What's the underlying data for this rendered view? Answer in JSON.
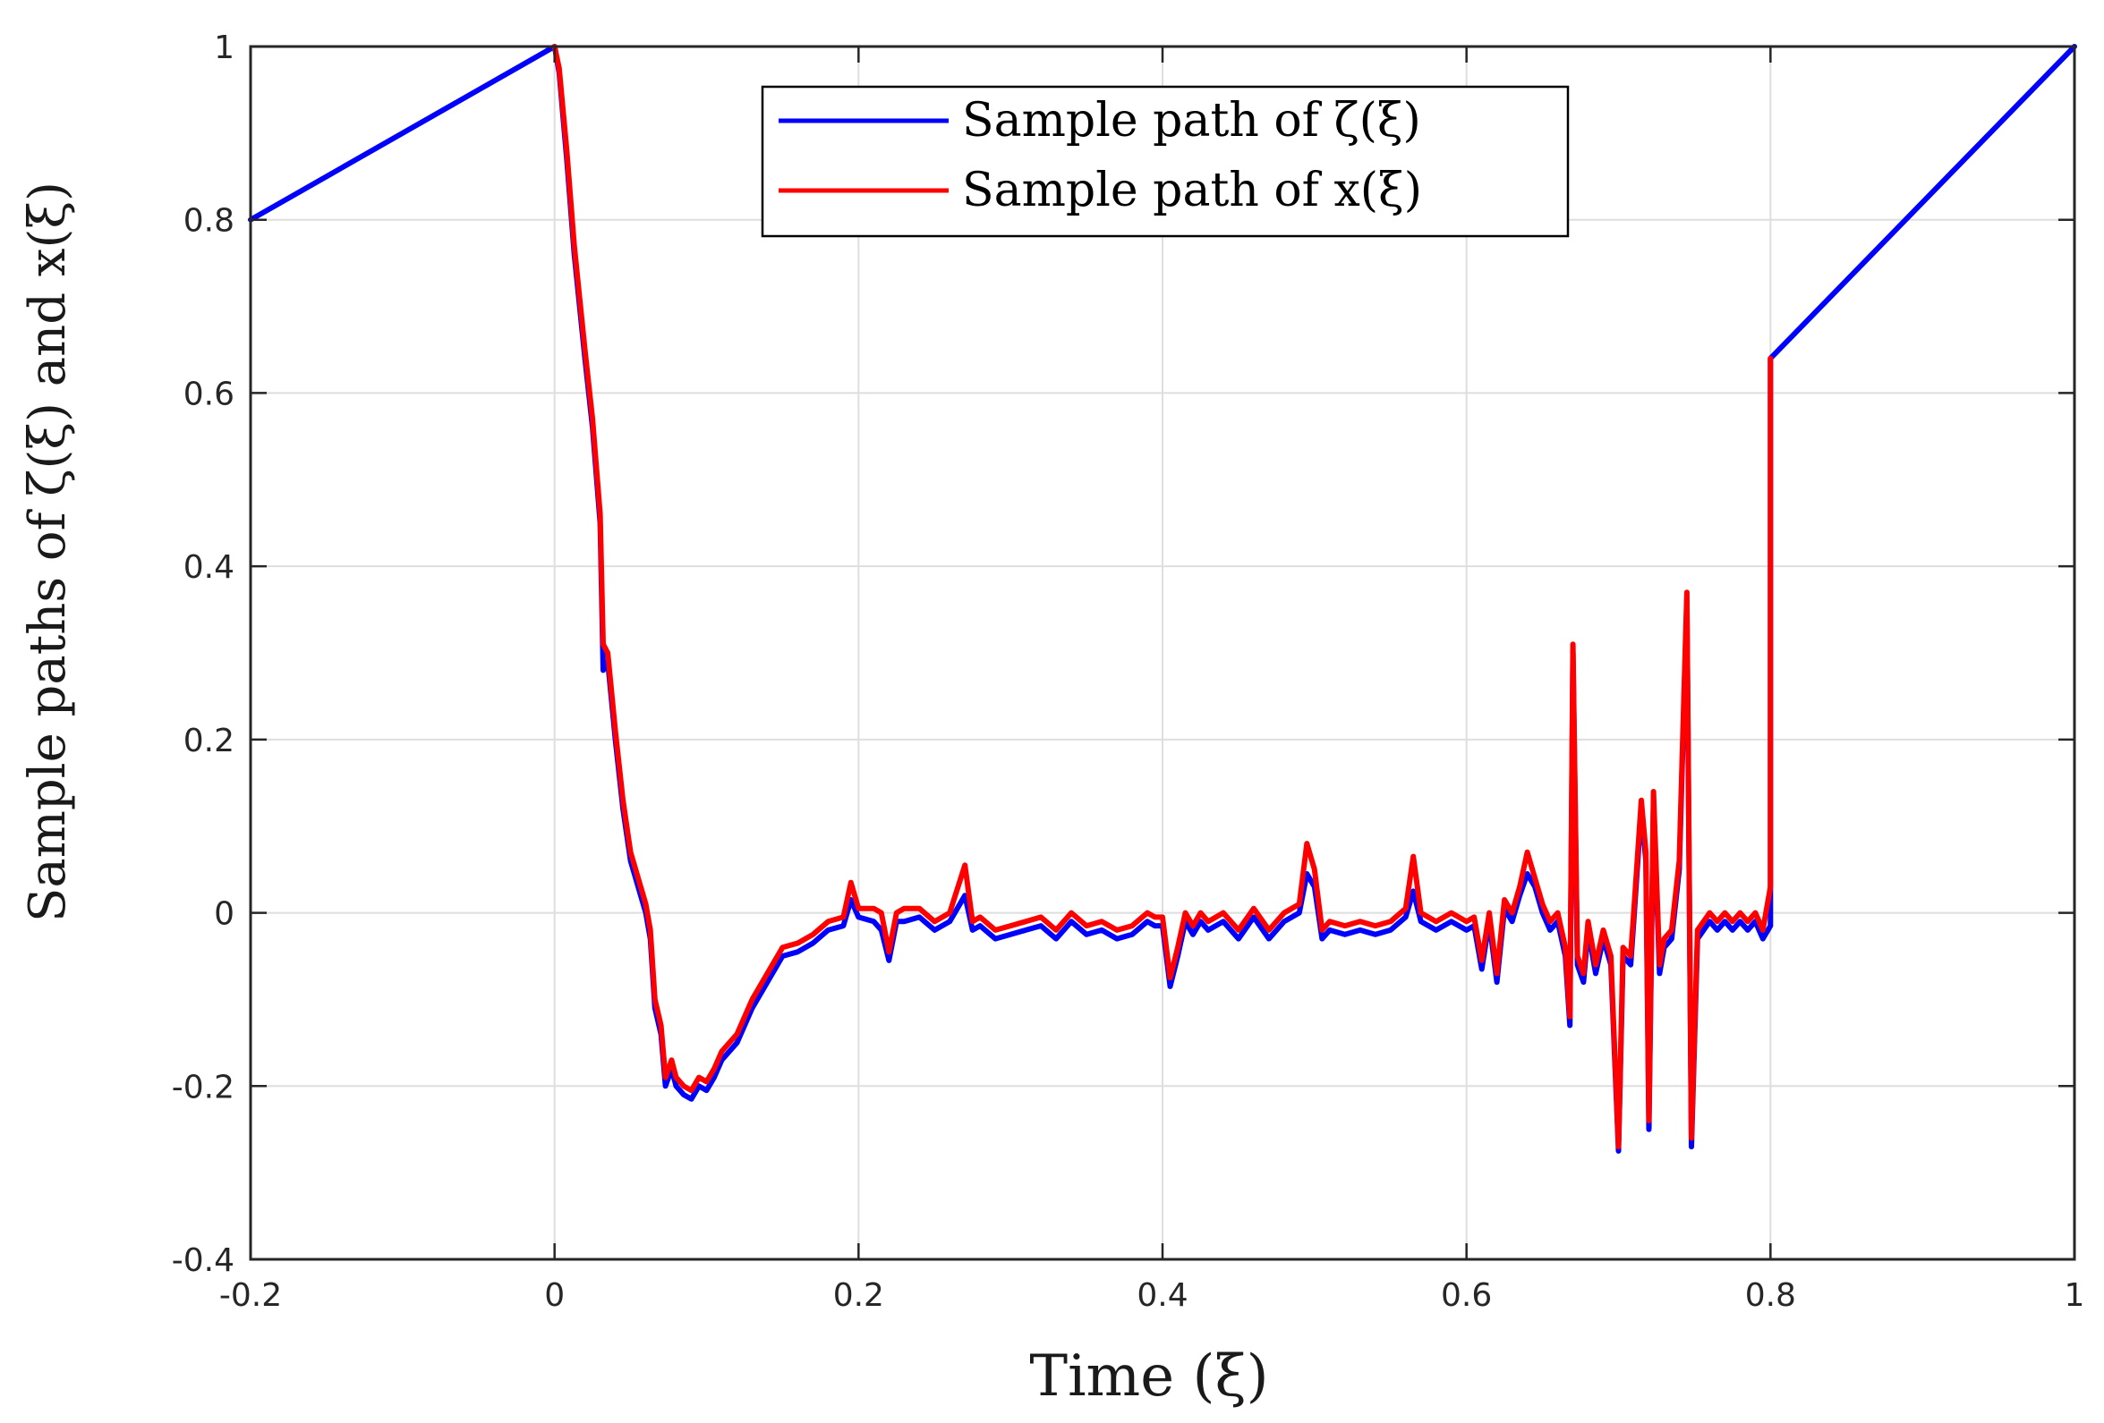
{
  "chart_data": {
    "type": "line",
    "xlabel": "Time (ξ)",
    "ylabel": "Sample paths of ζ(ξ) and x(ξ)",
    "xlim": [
      -0.2,
      1.0
    ],
    "ylim": [
      -0.4,
      1.0
    ],
    "xticks": [
      "-0.2",
      "0",
      "0.2",
      "0.4",
      "0.6",
      "0.8",
      "1"
    ],
    "yticks": [
      "-0.4",
      "-0.2",
      "0",
      "0.2",
      "0.4",
      "0.6",
      "0.8",
      "1"
    ],
    "grid": true,
    "legend_position": "top-center",
    "series": [
      {
        "name": "Sample path of ζ(ξ)",
        "color": "#0000ff",
        "points": [
          [
            -0.2,
            0.8
          ],
          [
            0.0,
            1.0
          ],
          [
            0.003,
            0.97
          ],
          [
            0.008,
            0.87
          ],
          [
            0.013,
            0.76
          ],
          [
            0.02,
            0.64
          ],
          [
            0.025,
            0.56
          ],
          [
            0.03,
            0.45
          ],
          [
            0.032,
            0.28
          ],
          [
            0.035,
            0.29
          ],
          [
            0.04,
            0.2
          ],
          [
            0.045,
            0.12
          ],
          [
            0.05,
            0.06
          ],
          [
            0.055,
            0.03
          ],
          [
            0.06,
            0.0
          ],
          [
            0.063,
            -0.03
          ],
          [
            0.066,
            -0.11
          ],
          [
            0.07,
            -0.14
          ],
          [
            0.073,
            -0.2
          ],
          [
            0.077,
            -0.18
          ],
          [
            0.08,
            -0.2
          ],
          [
            0.085,
            -0.21
          ],
          [
            0.09,
            -0.215
          ],
          [
            0.095,
            -0.2
          ],
          [
            0.1,
            -0.205
          ],
          [
            0.105,
            -0.19
          ],
          [
            0.11,
            -0.17
          ],
          [
            0.12,
            -0.15
          ],
          [
            0.13,
            -0.11
          ],
          [
            0.14,
            -0.08
          ],
          [
            0.15,
            -0.05
          ],
          [
            0.16,
            -0.045
          ],
          [
            0.17,
            -0.035
          ],
          [
            0.18,
            -0.02
          ],
          [
            0.19,
            -0.015
          ],
          [
            0.195,
            0.015
          ],
          [
            0.2,
            -0.005
          ],
          [
            0.21,
            -0.01
          ],
          [
            0.215,
            -0.02
          ],
          [
            0.22,
            -0.055
          ],
          [
            0.225,
            -0.01
          ],
          [
            0.23,
            -0.01
          ],
          [
            0.24,
            -0.005
          ],
          [
            0.25,
            -0.02
          ],
          [
            0.26,
            -0.01
          ],
          [
            0.27,
            0.02
          ],
          [
            0.275,
            -0.02
          ],
          [
            0.28,
            -0.015
          ],
          [
            0.29,
            -0.03
          ],
          [
            0.3,
            -0.025
          ],
          [
            0.31,
            -0.02
          ],
          [
            0.32,
            -0.015
          ],
          [
            0.33,
            -0.03
          ],
          [
            0.34,
            -0.01
          ],
          [
            0.35,
            -0.025
          ],
          [
            0.36,
            -0.02
          ],
          [
            0.37,
            -0.03
          ],
          [
            0.38,
            -0.025
          ],
          [
            0.39,
            -0.01
          ],
          [
            0.395,
            -0.015
          ],
          [
            0.4,
            -0.015
          ],
          [
            0.405,
            -0.085
          ],
          [
            0.41,
            -0.05
          ],
          [
            0.415,
            -0.01
          ],
          [
            0.42,
            -0.025
          ],
          [
            0.425,
            -0.01
          ],
          [
            0.43,
            -0.02
          ],
          [
            0.44,
            -0.01
          ],
          [
            0.45,
            -0.03
          ],
          [
            0.46,
            -0.005
          ],
          [
            0.47,
            -0.03
          ],
          [
            0.48,
            -0.01
          ],
          [
            0.49,
            0.0
          ],
          [
            0.495,
            0.045
          ],
          [
            0.5,
            0.03
          ],
          [
            0.505,
            -0.03
          ],
          [
            0.51,
            -0.02
          ],
          [
            0.52,
            -0.025
          ],
          [
            0.53,
            -0.02
          ],
          [
            0.54,
            -0.025
          ],
          [
            0.55,
            -0.02
          ],
          [
            0.56,
            -0.005
          ],
          [
            0.565,
            0.025
          ],
          [
            0.57,
            -0.01
          ],
          [
            0.58,
            -0.02
          ],
          [
            0.59,
            -0.01
          ],
          [
            0.6,
            -0.02
          ],
          [
            0.605,
            -0.015
          ],
          [
            0.61,
            -0.065
          ],
          [
            0.615,
            -0.01
          ],
          [
            0.62,
            -0.08
          ],
          [
            0.625,
            0.005
          ],
          [
            0.63,
            -0.01
          ],
          [
            0.635,
            0.02
          ],
          [
            0.64,
            0.045
          ],
          [
            0.645,
            0.03
          ],
          [
            0.65,
            0.0
          ],
          [
            0.655,
            -0.02
          ],
          [
            0.66,
            -0.01
          ],
          [
            0.665,
            -0.05
          ],
          [
            0.668,
            -0.13
          ],
          [
            0.67,
            0.3
          ],
          [
            0.673,
            -0.06
          ],
          [
            0.677,
            -0.08
          ],
          [
            0.68,
            -0.02
          ],
          [
            0.685,
            -0.07
          ],
          [
            0.69,
            -0.03
          ],
          [
            0.695,
            -0.06
          ],
          [
            0.7,
            -0.275
          ],
          [
            0.703,
            -0.05
          ],
          [
            0.708,
            -0.06
          ],
          [
            0.71,
            -0.01
          ],
          [
            0.715,
            0.12
          ],
          [
            0.718,
            0.06
          ],
          [
            0.72,
            -0.25
          ],
          [
            0.723,
            0.13
          ],
          [
            0.727,
            -0.07
          ],
          [
            0.73,
            -0.04
          ],
          [
            0.735,
            -0.03
          ],
          [
            0.74,
            0.05
          ],
          [
            0.745,
            0.36
          ],
          [
            0.748,
            -0.27
          ],
          [
            0.752,
            -0.03
          ],
          [
            0.76,
            -0.01
          ],
          [
            0.765,
            -0.02
          ],
          [
            0.77,
            -0.01
          ],
          [
            0.775,
            -0.02
          ],
          [
            0.78,
            -0.01
          ],
          [
            0.785,
            -0.02
          ],
          [
            0.79,
            -0.01
          ],
          [
            0.795,
            -0.03
          ],
          [
            0.8,
            -0.015
          ],
          [
            0.8,
            0.64
          ],
          [
            1.0,
            1.0
          ]
        ]
      },
      {
        "name": "Sample path of x(ξ)",
        "color": "#ff0000",
        "points": [
          [
            0.0,
            1.0
          ],
          [
            0.003,
            0.975
          ],
          [
            0.008,
            0.88
          ],
          [
            0.013,
            0.77
          ],
          [
            0.02,
            0.65
          ],
          [
            0.025,
            0.57
          ],
          [
            0.03,
            0.46
          ],
          [
            0.032,
            0.31
          ],
          [
            0.035,
            0.3
          ],
          [
            0.04,
            0.21
          ],
          [
            0.045,
            0.13
          ],
          [
            0.05,
            0.07
          ],
          [
            0.055,
            0.04
          ],
          [
            0.06,
            0.01
          ],
          [
            0.063,
            -0.02
          ],
          [
            0.066,
            -0.1
          ],
          [
            0.07,
            -0.13
          ],
          [
            0.073,
            -0.19
          ],
          [
            0.077,
            -0.17
          ],
          [
            0.08,
            -0.19
          ],
          [
            0.085,
            -0.2
          ],
          [
            0.09,
            -0.205
          ],
          [
            0.095,
            -0.19
          ],
          [
            0.1,
            -0.195
          ],
          [
            0.105,
            -0.18
          ],
          [
            0.11,
            -0.16
          ],
          [
            0.12,
            -0.14
          ],
          [
            0.13,
            -0.1
          ],
          [
            0.14,
            -0.07
          ],
          [
            0.15,
            -0.04
          ],
          [
            0.16,
            -0.035
          ],
          [
            0.17,
            -0.025
          ],
          [
            0.18,
            -0.01
          ],
          [
            0.19,
            -0.005
          ],
          [
            0.195,
            0.035
          ],
          [
            0.2,
            0.005
          ],
          [
            0.21,
            0.005
          ],
          [
            0.215,
            0.0
          ],
          [
            0.22,
            -0.045
          ],
          [
            0.225,
            0.0
          ],
          [
            0.23,
            0.005
          ],
          [
            0.24,
            0.005
          ],
          [
            0.25,
            -0.01
          ],
          [
            0.26,
            0.0
          ],
          [
            0.27,
            0.055
          ],
          [
            0.275,
            -0.01
          ],
          [
            0.28,
            -0.005
          ],
          [
            0.29,
            -0.02
          ],
          [
            0.3,
            -0.015
          ],
          [
            0.31,
            -0.01
          ],
          [
            0.32,
            -0.005
          ],
          [
            0.33,
            -0.02
          ],
          [
            0.34,
            0.0
          ],
          [
            0.35,
            -0.015
          ],
          [
            0.36,
            -0.01
          ],
          [
            0.37,
            -0.02
          ],
          [
            0.38,
            -0.015
          ],
          [
            0.39,
            0.0
          ],
          [
            0.395,
            -0.005
          ],
          [
            0.4,
            -0.005
          ],
          [
            0.405,
            -0.075
          ],
          [
            0.41,
            -0.04
          ],
          [
            0.415,
            0.0
          ],
          [
            0.42,
            -0.015
          ],
          [
            0.425,
            0.0
          ],
          [
            0.43,
            -0.01
          ],
          [
            0.44,
            0.0
          ],
          [
            0.45,
            -0.02
          ],
          [
            0.46,
            0.005
          ],
          [
            0.47,
            -0.02
          ],
          [
            0.48,
            0.0
          ],
          [
            0.49,
            0.01
          ],
          [
            0.495,
            0.08
          ],
          [
            0.5,
            0.05
          ],
          [
            0.505,
            -0.02
          ],
          [
            0.51,
            -0.01
          ],
          [
            0.52,
            -0.015
          ],
          [
            0.53,
            -0.01
          ],
          [
            0.54,
            -0.015
          ],
          [
            0.55,
            -0.01
          ],
          [
            0.56,
            0.005
          ],
          [
            0.565,
            0.065
          ],
          [
            0.57,
            0.0
          ],
          [
            0.58,
            -0.01
          ],
          [
            0.59,
            0.0
          ],
          [
            0.6,
            -0.01
          ],
          [
            0.605,
            -0.005
          ],
          [
            0.61,
            -0.055
          ],
          [
            0.615,
            0.0
          ],
          [
            0.62,
            -0.07
          ],
          [
            0.625,
            0.015
          ],
          [
            0.63,
            0.0
          ],
          [
            0.635,
            0.03
          ],
          [
            0.64,
            0.07
          ],
          [
            0.645,
            0.04
          ],
          [
            0.65,
            0.01
          ],
          [
            0.655,
            -0.01
          ],
          [
            0.66,
            0.0
          ],
          [
            0.665,
            -0.04
          ],
          [
            0.668,
            -0.12
          ],
          [
            0.67,
            0.31
          ],
          [
            0.673,
            -0.05
          ],
          [
            0.677,
            -0.07
          ],
          [
            0.68,
            -0.01
          ],
          [
            0.685,
            -0.06
          ],
          [
            0.69,
            -0.02
          ],
          [
            0.695,
            -0.05
          ],
          [
            0.7,
            -0.27
          ],
          [
            0.703,
            -0.04
          ],
          [
            0.708,
            -0.05
          ],
          [
            0.71,
            0.0
          ],
          [
            0.715,
            0.13
          ],
          [
            0.718,
            0.07
          ],
          [
            0.72,
            -0.24
          ],
          [
            0.723,
            0.14
          ],
          [
            0.727,
            -0.06
          ],
          [
            0.73,
            -0.03
          ],
          [
            0.735,
            -0.02
          ],
          [
            0.74,
            0.06
          ],
          [
            0.745,
            0.37
          ],
          [
            0.748,
            -0.26
          ],
          [
            0.752,
            -0.02
          ],
          [
            0.76,
            0.0
          ],
          [
            0.765,
            -0.01
          ],
          [
            0.77,
            0.0
          ],
          [
            0.775,
            -0.01
          ],
          [
            0.78,
            0.0
          ],
          [
            0.785,
            -0.01
          ],
          [
            0.79,
            0.0
          ],
          [
            0.795,
            -0.02
          ],
          [
            0.8,
            0.03
          ],
          [
            0.8,
            0.64
          ]
        ]
      }
    ]
  }
}
